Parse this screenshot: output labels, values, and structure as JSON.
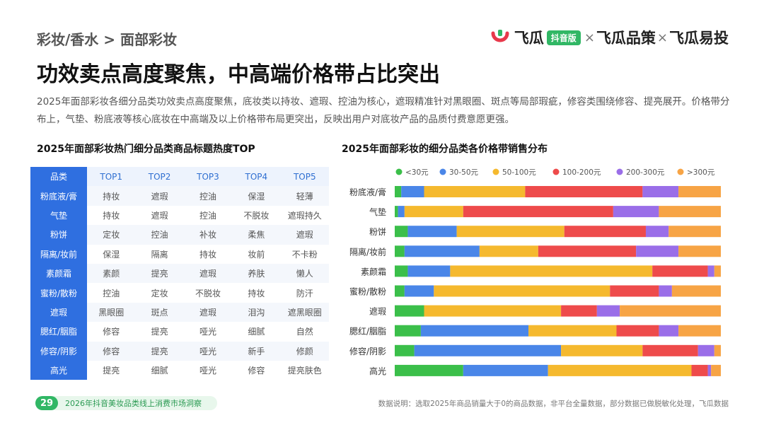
{
  "header": {
    "breadcrumb": "彩妆/香水 > 面部彩妆",
    "brand": {
      "name1": "飞瓜",
      "badge": "抖音版",
      "x": "×",
      "name2": "飞瓜品策",
      "name3": "飞瓜易投"
    }
  },
  "title": "功效卖点高度聚焦，中高端价格带占比突出",
  "description": "2025年面部彩妆各细分品类功效卖点高度聚焦，底妆类以持妆、遮瑕、控油为核心，遮瑕精准针对黑眼圈、斑点等局部瑕疵，修容类围绕修容、提亮展开。价格带分布上，气垫、粉底液等核心底妆在中高端及以上价格带布局更突出，反映出用户对底妆产品的品质付费意愿更强。",
  "table": {
    "title": "2025年面部彩妆热门细分品类商品标题热度TOP",
    "headers": [
      "品类",
      "TOP1",
      "TOP2",
      "TOP3",
      "TOP4",
      "TOP5"
    ],
    "rows": [
      [
        "粉底液/膏",
        "持妆",
        "遮瑕",
        "控油",
        "保湿",
        "轻薄"
      ],
      [
        "气垫",
        "持妆",
        "遮瑕",
        "控油",
        "不脱妆",
        "遮瑕持久"
      ],
      [
        "粉饼",
        "定妆",
        "控油",
        "补妆",
        "柔焦",
        "遮瑕"
      ],
      [
        "隔离/妆前",
        "保湿",
        "隔离",
        "持妆",
        "妆前",
        "不卡粉"
      ],
      [
        "素颜霜",
        "素颜",
        "提亮",
        "遮瑕",
        "养肤",
        "懒人"
      ],
      [
        "蜜粉/散粉",
        "控油",
        "定妆",
        "不脱妆",
        "持妆",
        "防汗"
      ],
      [
        "遮瑕",
        "黑眼圈",
        "斑点",
        "遮瑕",
        "泪沟",
        "遮黑眼圈"
      ],
      [
        "腮红/胭脂",
        "修容",
        "提亮",
        "哑光",
        "细腻",
        "自然"
      ],
      [
        "修容/阴影",
        "修容",
        "提亮",
        "哑光",
        "新手",
        "修颜"
      ],
      [
        "高光",
        "提亮",
        "细腻",
        "哑光",
        "修容",
        "提亮肤色"
      ]
    ]
  },
  "chart_data": {
    "type": "bar",
    "orientation": "horizontal",
    "stacked": true,
    "normalized": true,
    "title": "2025年面部彩妆的细分品类各价格带销售分布",
    "legend_position": "top",
    "categories": [
      "粉底液/膏",
      "气垫",
      "粉饼",
      "隔离/妆前",
      "素颜霜",
      "蜜粉/散粉",
      "遮瑕",
      "腮红/胭脂",
      "修容/阴影",
      "高光"
    ],
    "series": [
      {
        "name": "<30元",
        "color": "#3bbf4a",
        "values": [
          2,
          1,
          4,
          3,
          4,
          3,
          9,
          8,
          6,
          21
        ]
      },
      {
        "name": "30-50元",
        "color": "#4a86e8",
        "values": [
          7,
          2,
          15,
          23,
          13,
          9,
          0,
          33,
          45,
          26
        ]
      },
      {
        "name": "50-100元",
        "color": "#f5b92e",
        "values": [
          31,
          18,
          33,
          18,
          62,
          54,
          42,
          27,
          25,
          44
        ]
      },
      {
        "name": "100-200元",
        "color": "#ee4b4b",
        "values": [
          36,
          46,
          25,
          30,
          17,
          15,
          11,
          13,
          17,
          5
        ]
      },
      {
        "name": "200-300元",
        "color": "#9a6ee8",
        "values": [
          11,
          14,
          7,
          13,
          2,
          4,
          7,
          6,
          5,
          1
        ]
      },
      {
        "name": ">300元",
        "color": "#f7a445",
        "values": [
          13,
          19,
          16,
          13,
          2,
          15,
          31,
          13,
          2,
          3
        ]
      }
    ]
  },
  "footer": {
    "page_number": "29",
    "report_name": "2026年抖音美妆品类线上消费市场洞察",
    "note": "数据说明：选取2025年商品销量大于0的商品数据，非平台全量数据，部分数据已做脱敏化处理，飞瓜数据"
  },
  "colors": {
    "accent_blue": "#2f6fe0",
    "brand_green": "#31b765",
    "brand_red": "#e8394b"
  },
  "icons": [
    "feigua-logo-icon",
    "feigua-watermark-icon"
  ]
}
